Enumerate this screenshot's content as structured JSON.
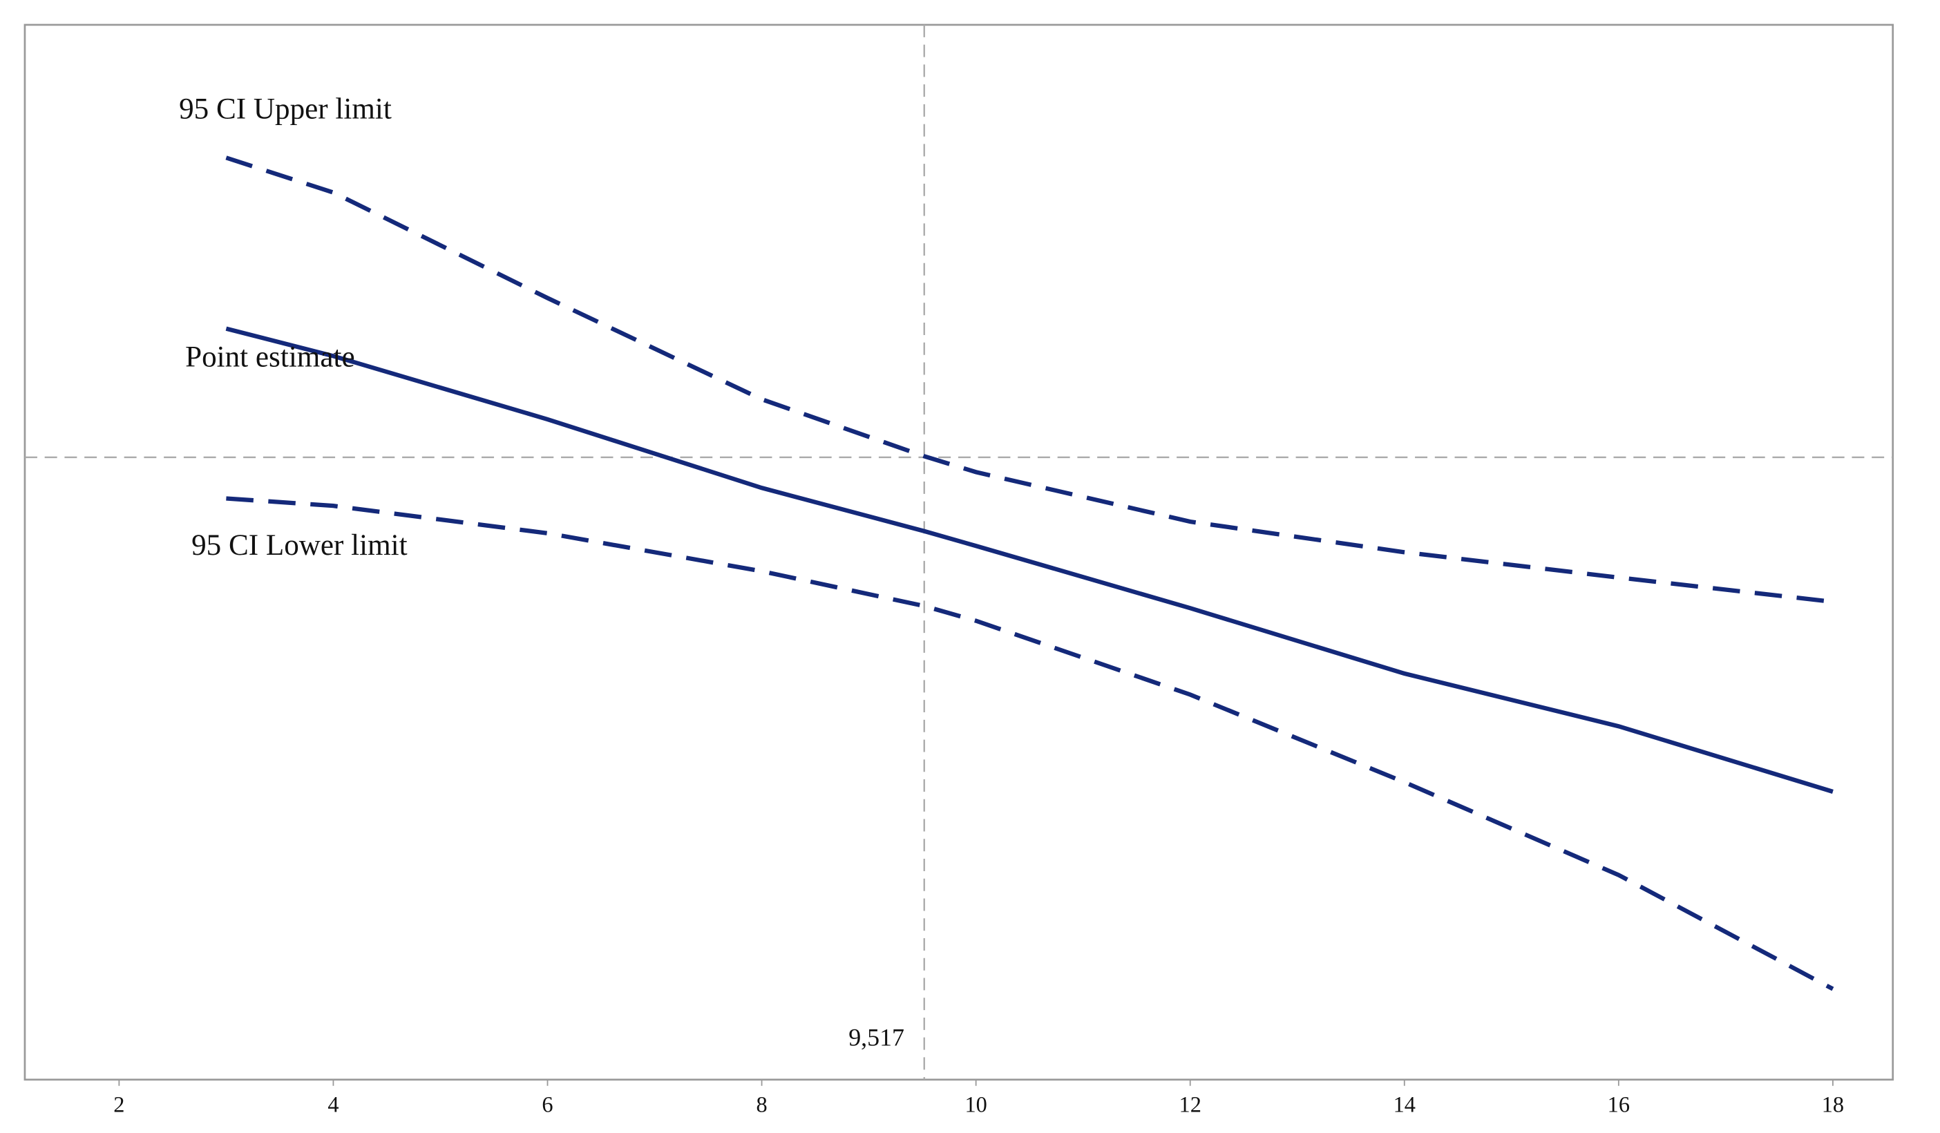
{
  "chart_data": {
    "type": "line",
    "x": [
      3,
      4,
      6,
      8,
      9.517,
      10,
      12,
      14,
      16,
      18
    ],
    "series": [
      {
        "name": "95 CI Upper limit",
        "color": "#14297a",
        "dashed": true,
        "values": [
          87.4,
          84.1,
          74.1,
          64.5,
          59.1,
          57.6,
          52.9,
          50,
          47.6,
          45.3
        ]
      },
      {
        "name": "Point estimate",
        "color": "#14297a",
        "dashed": false,
        "values": [
          71.2,
          68.6,
          62.6,
          56.1,
          52,
          50.6,
          44.7,
          38.5,
          33.5,
          27.3
        ]
      },
      {
        "name": "95 CI Lower limit",
        "color": "#14297a",
        "dashed": true,
        "values": [
          55.1,
          54.4,
          51.8,
          48.2,
          44.9,
          43.5,
          36.5,
          28.2,
          19.4,
          8.6
        ]
      }
    ],
    "xlim": [
      1.12,
      18.56
    ],
    "ylim": [
      0,
      100
    ],
    "xticks": [
      2,
      4,
      6,
      8,
      10,
      12,
      14,
      16,
      18
    ],
    "reference_x": {
      "value": 9.517,
      "label": "9,517"
    },
    "reference_y": 59,
    "grid": false
  }
}
